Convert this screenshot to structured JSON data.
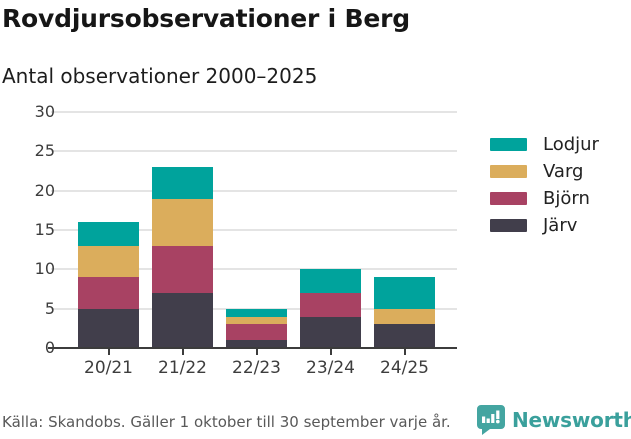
{
  "title": "Rovdjursobservationer i Berg",
  "subtitle": "Antal observationer 2000–2025",
  "footer": {
    "source": "Källa: Skandobs. Gäller 1 oktober till 30 september varje år.",
    "brand": "Newsworthy",
    "brand_icon": "newsworthy-speech-bubble-bar-chart-icon",
    "brand_color": "#3aa09c",
    "brand_icon_color": "#44a5a1"
  },
  "colors": {
    "lodjur": "#00a39c",
    "varg": "#dbad5c",
    "bjorn": "#a84263",
    "jarv": "#413e4b",
    "gridline": "#e4e4e4",
    "axis": "#3c3c3c",
    "title_text": "#161616",
    "tick_label": "#3d3d3d",
    "source_text": "#595959"
  },
  "chart_data": {
    "type": "bar",
    "stacked": true,
    "title": "Rovdjursobservationer i Berg",
    "subtitle": "Antal observationer 2000–2025",
    "xlabel": "",
    "ylabel": "Antal observationer",
    "categories": [
      "20/21",
      "21/22",
      "22/23",
      "23/24",
      "24/25"
    ],
    "series": [
      {
        "name": "Järv",
        "color": "#413e4b",
        "values": [
          5,
          7,
          1,
          4,
          3
        ]
      },
      {
        "name": "Björn",
        "color": "#a84263",
        "values": [
          4,
          6,
          2,
          3,
          0
        ]
      },
      {
        "name": "Varg",
        "color": "#dbad5c",
        "values": [
          4,
          6,
          1,
          0,
          2
        ]
      },
      {
        "name": "Lodjur",
        "color": "#00a39c",
        "values": [
          3,
          4,
          1,
          3,
          4
        ]
      }
    ],
    "stack_totals": [
      16,
      23,
      5,
      10,
      9
    ],
    "ylim": [
      0,
      30
    ],
    "yticks": [
      0,
      5,
      10,
      15,
      20,
      25,
      30
    ],
    "grid": true,
    "legend_position": "right"
  },
  "legend": {
    "items": [
      {
        "label": "Lodjur",
        "color": "#00a39c"
      },
      {
        "label": "Varg",
        "color": "#dbad5c"
      },
      {
        "label": "Björn",
        "color": "#a84263"
      },
      {
        "label": "Järv",
        "color": "#413e4b"
      }
    ]
  }
}
